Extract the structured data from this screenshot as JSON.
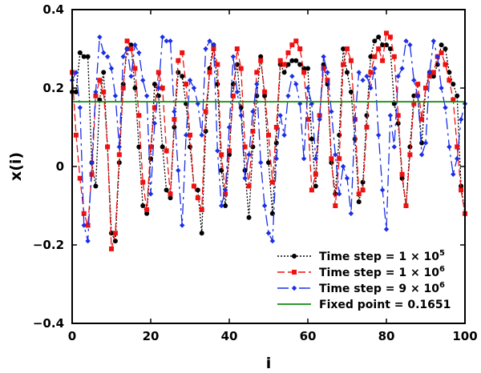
{
  "chart_data": {
    "type": "line",
    "xlabel": "i",
    "ylabel": "x(i)",
    "xlim": [
      0,
      100
    ],
    "ylim": [
      -0.4,
      0.4
    ],
    "xticks": [
      0,
      20,
      40,
      60,
      80,
      100
    ],
    "yticks": [
      -0.4,
      -0.2,
      0,
      0.2,
      0.4
    ],
    "ytick_labels": [
      "−0.4",
      "−0.2",
      "0",
      "0.2",
      "0.4"
    ],
    "grid": false,
    "legend_position": "bottom-right",
    "series": [
      {
        "name": "Time step = 1 × 10",
        "name_exp": "5",
        "color": "#000000",
        "dash": "2,2",
        "marker": "circle",
        "x": [
          0,
          1,
          2,
          3,
          4,
          5,
          6,
          7,
          8,
          9,
          10,
          11,
          12,
          13,
          14,
          15,
          16,
          17,
          18,
          19,
          20,
          21,
          22,
          23,
          24,
          25,
          26,
          27,
          28,
          29,
          30,
          31,
          32,
          33,
          34,
          35,
          36,
          37,
          38,
          39,
          40,
          41,
          42,
          43,
          44,
          45,
          46,
          47,
          48,
          49,
          50,
          51,
          52,
          53,
          54,
          55,
          56,
          57,
          58,
          59,
          60,
          61,
          62,
          63,
          64,
          65,
          66,
          67,
          68,
          69,
          70,
          71,
          72,
          73,
          74,
          75,
          76,
          77,
          78,
          79,
          80,
          81,
          82,
          83,
          84,
          85,
          86,
          87,
          88,
          89,
          90,
          91,
          92,
          93,
          94,
          95,
          96,
          97,
          98,
          99,
          100
        ],
        "values": [
          0.19,
          0.19,
          0.29,
          0.28,
          0.28,
          0.01,
          -0.05,
          0.17,
          0.24,
          0.05,
          -0.17,
          -0.19,
          0.01,
          0.21,
          0.3,
          0.31,
          0.2,
          0.05,
          -0.1,
          -0.12,
          0.02,
          0.21,
          0.18,
          0.05,
          -0.06,
          -0.08,
          0.1,
          0.24,
          0.23,
          0.16,
          0.05,
          -0.05,
          -0.06,
          -0.17,
          0.09,
          0.25,
          0.31,
          0.21,
          -0.01,
          -0.1,
          0.03,
          0.21,
          0.26,
          0.15,
          -0.01,
          -0.13,
          0.05,
          0.18,
          0.28,
          0.18,
          0.01,
          -0.12,
          0.06,
          0.26,
          0.24,
          0.26,
          0.27,
          0.27,
          0.26,
          0.25,
          0.25,
          0.07,
          -0.05,
          0.13,
          0.26,
          0.21,
          0.01,
          -0.07,
          0.08,
          0.3,
          0.24,
          0.19,
          0.07,
          -0.09,
          -0.04,
          0.13,
          0.28,
          0.32,
          0.33,
          0.31,
          0.31,
          0.3,
          0.16,
          0.11,
          -0.03,
          -0.1,
          0.05,
          0.18,
          0.18,
          0.06,
          0.2,
          0.24,
          0.23,
          0.26,
          0.31,
          0.3,
          0.24,
          0.21,
          0.18,
          -0.05,
          -0.12
        ]
      },
      {
        "name": "Time step = 1 × 10",
        "name_exp": "6",
        "color": "#ee1111",
        "dash": "9,4",
        "marker": "square",
        "x": [
          0,
          1,
          2,
          3,
          4,
          5,
          6,
          7,
          8,
          9,
          10,
          11,
          12,
          13,
          14,
          15,
          16,
          17,
          18,
          19,
          20,
          21,
          22,
          23,
          24,
          25,
          26,
          27,
          28,
          29,
          30,
          31,
          32,
          33,
          34,
          35,
          36,
          37,
          38,
          39,
          40,
          41,
          42,
          43,
          44,
          45,
          46,
          47,
          48,
          49,
          50,
          51,
          52,
          53,
          54,
          55,
          56,
          57,
          58,
          59,
          60,
          61,
          62,
          63,
          64,
          65,
          66,
          67,
          68,
          69,
          70,
          71,
          72,
          73,
          74,
          75,
          76,
          77,
          78,
          79,
          80,
          81,
          82,
          83,
          84,
          85,
          86,
          87,
          88,
          89,
          90,
          91,
          92,
          93,
          94,
          95,
          96,
          97,
          98,
          99,
          100
        ],
        "values": [
          0.24,
          0.08,
          -0.03,
          -0.12,
          -0.15,
          -0.02,
          0.18,
          0.22,
          0.19,
          0.05,
          -0.21,
          -0.17,
          0.03,
          0.2,
          0.32,
          0.3,
          0.25,
          0.13,
          -0.04,
          -0.11,
          0.05,
          0.15,
          0.24,
          0.2,
          0.04,
          -0.07,
          0.12,
          0.27,
          0.29,
          0.21,
          0.08,
          -0.05,
          -0.08,
          -0.11,
          0.14,
          0.24,
          0.3,
          0.26,
          0.03,
          -0.07,
          0.04,
          0.18,
          0.3,
          0.25,
          0.05,
          -0.05,
          0.09,
          0.24,
          0.27,
          0.19,
          0.08,
          -0.04,
          0.1,
          0.27,
          0.26,
          0.29,
          0.31,
          0.32,
          0.3,
          0.24,
          0.12,
          -0.06,
          -0.02,
          0.13,
          0.25,
          0.22,
          0.02,
          -0.1,
          0.02,
          0.26,
          0.3,
          0.27,
          0.12,
          -0.07,
          -0.06,
          0.1,
          0.24,
          0.28,
          0.3,
          0.27,
          0.34,
          0.33,
          0.28,
          0.13,
          -0.02,
          -0.1,
          0.03,
          0.16,
          0.21,
          0.12,
          0.2,
          0.23,
          0.24,
          0.28,
          0.29,
          0.26,
          0.22,
          0.17,
          0.05,
          -0.06,
          -0.12
        ]
      },
      {
        "name": "Time step = 9 × 10",
        "name_exp": "6",
        "color": "#1a2ee6",
        "dash": "14,5,3,5",
        "marker": "diamond",
        "x": [
          0,
          1,
          2,
          3,
          4,
          5,
          6,
          7,
          8,
          9,
          10,
          11,
          12,
          13,
          14,
          15,
          16,
          17,
          18,
          19,
          20,
          21,
          22,
          23,
          24,
          25,
          26,
          27,
          28,
          29,
          30,
          31,
          32,
          33,
          34,
          35,
          36,
          37,
          38,
          39,
          40,
          41,
          42,
          43,
          44,
          45,
          46,
          47,
          48,
          49,
          50,
          51,
          52,
          53,
          54,
          55,
          56,
          57,
          58,
          59,
          60,
          61,
          62,
          63,
          64,
          65,
          66,
          67,
          68,
          69,
          70,
          71,
          72,
          73,
          74,
          75,
          76,
          77,
          78,
          79,
          80,
          81,
          82,
          83,
          84,
          85,
          86,
          87,
          88,
          89,
          90,
          91,
          92,
          93,
          94,
          95,
          96,
          97,
          98,
          99,
          100
        ],
        "values": [
          0.22,
          0.24,
          0.15,
          -0.15,
          -0.19,
          0.01,
          0.19,
          0.33,
          0.29,
          0.28,
          0.25,
          0.18,
          0.05,
          0.28,
          0.3,
          0.23,
          0.31,
          0.29,
          0.22,
          0.18,
          -0.07,
          0.11,
          0.2,
          0.33,
          0.32,
          0.32,
          0.14,
          -0.01,
          -0.15,
          0.08,
          0.22,
          0.2,
          0.16,
          0.08,
          0.3,
          0.32,
          0.31,
          0.04,
          -0.1,
          -0.06,
          0.1,
          0.28,
          0.19,
          0.13,
          -0.03,
          0.03,
          0.14,
          0.21,
          0.01,
          -0.1,
          -0.17,
          -0.19,
          0.02,
          0.13,
          0.08,
          0.18,
          0.23,
          0.21,
          0.16,
          0.02,
          0.2,
          0.16,
          0.02,
          0.12,
          0.28,
          0.24,
          0.14,
          0.03,
          -0.07,
          0.0,
          -0.03,
          -0.12,
          0.12,
          0.24,
          0.22,
          0.23,
          0.2,
          0.25,
          0.08,
          -0.06,
          -0.16,
          0.13,
          0.05,
          0.23,
          0.25,
          0.32,
          0.31,
          0.22,
          0.18,
          0.03,
          0.06,
          0.24,
          0.32,
          0.28,
          0.2,
          0.15,
          0.05,
          -0.02,
          0.02,
          0.12,
          0.16
        ]
      },
      {
        "name": "Fixed point = 0.1651",
        "color": "#0d8a0d",
        "dash": "",
        "marker": "none",
        "x": [
          0,
          100
        ],
        "values": [
          0.1651,
          0.1651
        ]
      }
    ]
  }
}
